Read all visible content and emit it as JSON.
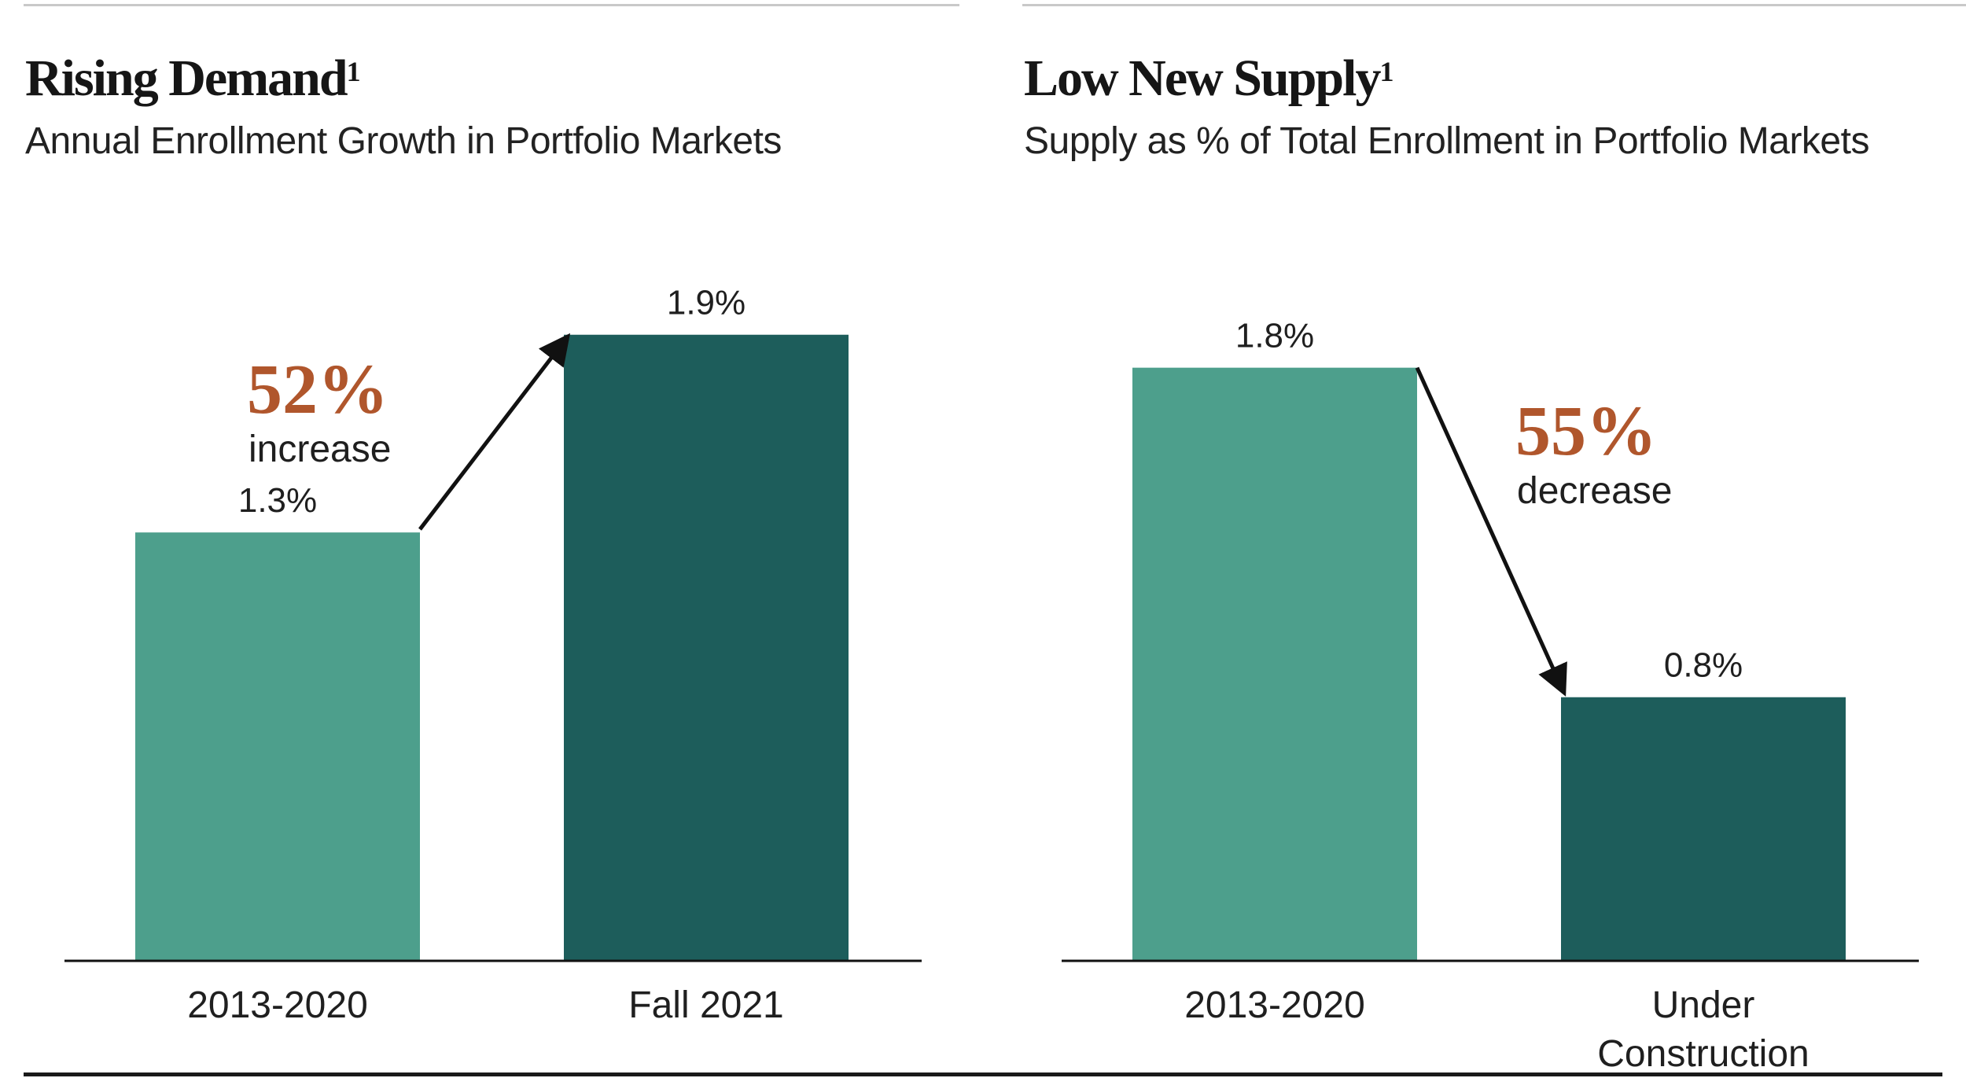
{
  "colors": {
    "bar_light": "#4d9f8c",
    "bar_dark": "#1d5d5b",
    "accent": "#b0562c"
  },
  "chart_data": [
    {
      "type": "bar",
      "title": "Rising Demand",
      "title_sup": "1",
      "subtitle": "Annual Enrollment Growth in Portfolio Markets",
      "categories": [
        "2013-2020",
        "Fall 2021"
      ],
      "values": [
        1.3,
        1.9
      ],
      "value_labels": [
        "1.3%",
        "1.9%"
      ],
      "ylim": [
        0,
        2.2
      ],
      "change": {
        "value": "52%",
        "label": "increase",
        "direction": "up"
      }
    },
    {
      "type": "bar",
      "title": "Low New Supply",
      "title_sup": "1",
      "subtitle": "Supply as % of Total Enrollment in Portfolio Markets",
      "categories": [
        "2013-2020",
        "Under Construction"
      ],
      "category_lines": [
        [
          "2013-2020"
        ],
        [
          "Under",
          "Construction"
        ]
      ],
      "values": [
        1.8,
        0.8
      ],
      "value_labels": [
        "1.8%",
        "0.8%"
      ],
      "ylim": [
        0,
        2.2
      ],
      "change": {
        "value": "55%",
        "label": "decrease",
        "direction": "down"
      }
    }
  ]
}
